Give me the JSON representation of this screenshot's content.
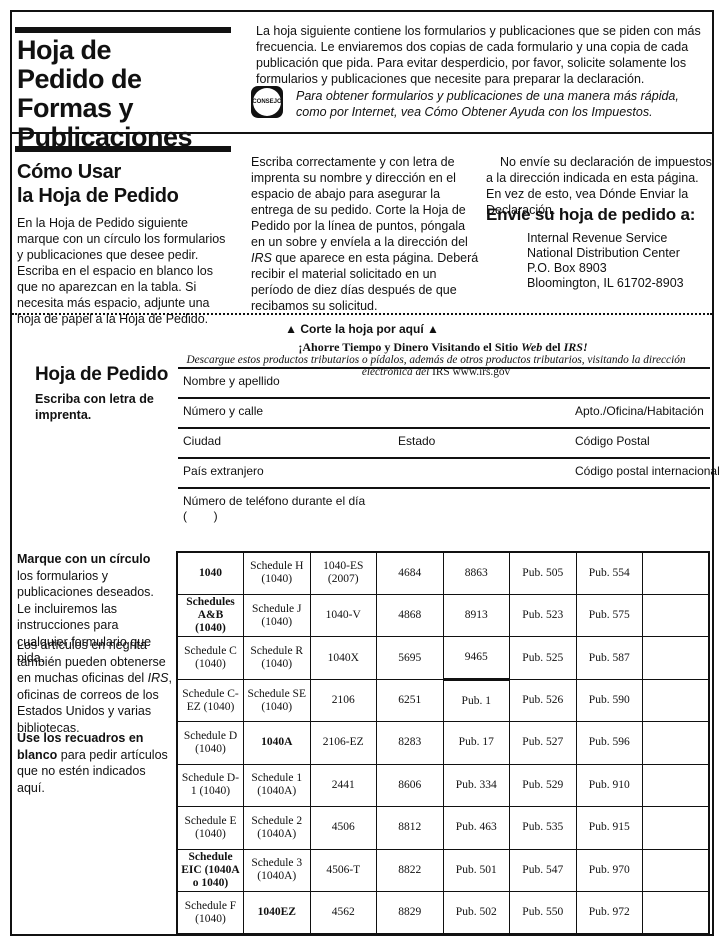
{
  "masthead": {
    "title_lines": [
      "Hoja de",
      "Pedido de",
      "Formas y",
      "Publicaciones"
    ],
    "intro": "La hoja siguiente contiene los formularios y publicaciones que se piden con más frecuencia. Le enviaremos dos copias de cada formulario y una copia de cada publicación que pida. Para evitar desperdicio, por favor, solicite solamente los formularios y publicaciones que necesite para preparar la declaración.",
    "consejo_label": "CONSEJO",
    "consejo_text": "Para obtener formularios y publicaciones de una manera más rápida, como por Internet, vea Cómo Obtener Ayuda con los Impuestos."
  },
  "howto": {
    "heading_lines": [
      "Cómo Usar",
      "la Hoja de Pedido"
    ],
    "body": "En la Hoja de Pedido siguiente marque con un círculo los formularios y publicaciones que desee pedir. Escriba en el espacio en blanco los que no aparezcan en la tabla. Si necesita más espacio, adjunte una hoja de papel a la Hoja de Pedido."
  },
  "mailing": {
    "instructions_a": "Escriba correctamente y con letra de imprenta su nombre y dirección en el espacio de abajo para asegurar la entrega de su pedido. Corte la Hoja de Pedido por la línea de puntos, póngala en un sobre y envíela a la dirección del ",
    "instructions_irs": "IRS",
    "instructions_b": " que aparece en esta página. Deberá recibir el material solicitado en un período de diez días después de que recibamos su solicitud.",
    "do_not": "No envíe su declaración de impuestos a la dirección indicada en esta página. En vez de esto, vea Dónde Enviar la Declaración.",
    "send_heading": "Envíe su hoja de pedido a:",
    "address_lines": [
      "Internal Revenue Service",
      "National Distribution Center",
      "P.O. Box 8903",
      "Bloomington, IL 61702-8903"
    ]
  },
  "cut_line": {
    "label": "▲ Corte la hoja por aquí ▲"
  },
  "web_banner": {
    "line1_a": "¡Ahorre Tiempo y Dinero Visitando el Sitio ",
    "line1_web": "Web",
    "line1_b": " del ",
    "line1_irs": "IRS!",
    "line2_a": "Descargue estos productos tributarios o pídalos, además de otros productos tributarios, visitando la dirección electrónica del ",
    "line2_b": "IRS www.irs.gov"
  },
  "order_form": {
    "heading": "Hoja de Pedido",
    "note": "Escriba con letra de imprenta.",
    "fields": {
      "name": "Nombre y apellido",
      "street": "Número y calle",
      "apt": "Apto./Oficina/Habitación",
      "city": "Ciudad",
      "state": "Estado",
      "zip": "Código Postal",
      "foreign_country": "País extranjero",
      "intl_zip": "Código postal internacional",
      "phone": "Número de teléfono durante el día",
      "phone_area": "(        )"
    }
  },
  "sidebar": {
    "p1_bold": "Marque con un círculo",
    "p1_rest": " los formularios y publicaciones deseados. Le incluiremos las instrucciones para cualquier formulario que pida.",
    "p2_a": "Los artículos en negrita también pueden obtenerse en muchas oficinas del ",
    "p2_irs": "IRS",
    "p2_b": ", oficinas de correos de los Estados Unidos y varias bibliotecas.",
    "p3_bold": "Use los recuadros en blanco",
    "p3_rest": " para pedir artículos que no estén indicados aquí."
  },
  "table": {
    "rows": [
      [
        {
          "t": "1040",
          "b": true
        },
        {
          "t": "Schedule H (1040)"
        },
        {
          "t": "1040-ES (2007)"
        },
        {
          "t": "4684"
        },
        {
          "t": "8863"
        },
        {
          "t": "Pub. 505"
        },
        {
          "t": "Pub. 554"
        },
        {
          "t": ""
        }
      ],
      [
        {
          "t": "Schedules A&B (1040)",
          "b": true
        },
        {
          "t": "Schedule J (1040)"
        },
        {
          "t": "1040-V"
        },
        {
          "t": "4868"
        },
        {
          "t": "8913"
        },
        {
          "t": "Pub. 523"
        },
        {
          "t": "Pub. 575"
        },
        {
          "t": ""
        }
      ],
      [
        {
          "t": "Schedule C (1040)"
        },
        {
          "t": "Schedule R (1040)"
        },
        {
          "t": "1040X"
        },
        {
          "t": "5695"
        },
        {
          "t": "9465",
          "thick": true
        },
        {
          "t": "Pub. 525"
        },
        {
          "t": "Pub. 587"
        },
        {
          "t": ""
        }
      ],
      [
        {
          "t": "Schedule C-EZ (1040)"
        },
        {
          "t": "Schedule SE (1040)"
        },
        {
          "t": "2106"
        },
        {
          "t": "6251"
        },
        {
          "t": "Pub. 1"
        },
        {
          "t": "Pub. 526"
        },
        {
          "t": "Pub. 590"
        },
        {
          "t": ""
        }
      ],
      [
        {
          "t": "Schedule D (1040)"
        },
        {
          "t": "1040A",
          "b": true
        },
        {
          "t": "2106-EZ"
        },
        {
          "t": "8283"
        },
        {
          "t": "Pub. 17"
        },
        {
          "t": "Pub. 527"
        },
        {
          "t": "Pub. 596"
        },
        {
          "t": ""
        }
      ],
      [
        {
          "t": "Schedule D-1 (1040)"
        },
        {
          "t": "Schedule 1 (1040A)"
        },
        {
          "t": "2441"
        },
        {
          "t": "8606"
        },
        {
          "t": "Pub. 334"
        },
        {
          "t": "Pub. 529"
        },
        {
          "t": "Pub. 910"
        },
        {
          "t": ""
        }
      ],
      [
        {
          "t": "Schedule E (1040)"
        },
        {
          "t": "Schedule 2 (1040A)"
        },
        {
          "t": "4506"
        },
        {
          "t": "8812"
        },
        {
          "t": "Pub. 463"
        },
        {
          "t": "Pub. 535"
        },
        {
          "t": "Pub. 915"
        },
        {
          "t": ""
        }
      ],
      [
        {
          "t": "Schedule EIC (1040A o 1040)",
          "b": true
        },
        {
          "t": "Schedule 3 (1040A)"
        },
        {
          "t": "4506-T"
        },
        {
          "t": "8822"
        },
        {
          "t": "Pub. 501"
        },
        {
          "t": "Pub. 547"
        },
        {
          "t": "Pub. 970"
        },
        {
          "t": ""
        }
      ],
      [
        {
          "t": "Schedule F (1040)"
        },
        {
          "t": "1040EZ",
          "b": true
        },
        {
          "t": "4562"
        },
        {
          "t": "8829"
        },
        {
          "t": "Pub. 502"
        },
        {
          "t": "Pub. 550"
        },
        {
          "t": "Pub. 972"
        },
        {
          "t": ""
        }
      ]
    ]
  }
}
